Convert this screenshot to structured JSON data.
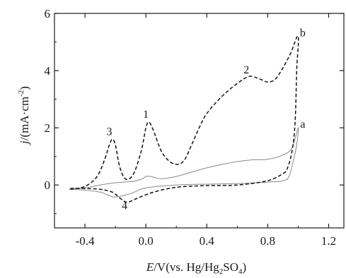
{
  "chart_data": {
    "type": "line",
    "xlim": [
      -0.6,
      1.3
    ],
    "ylim": [
      -1.5,
      6
    ],
    "x_ticks": [
      "-0.4",
      "0.0",
      "0.4",
      "0.8",
      "1.2"
    ],
    "x_tick_values": [
      -0.4,
      0.0,
      0.4,
      0.8,
      1.2
    ],
    "y_ticks": [
      "0",
      "2",
      "4",
      "6"
    ],
    "y_tick_values": [
      0,
      2,
      4,
      6
    ],
    "xlabel": {
      "italic": "E",
      "rest": "/V(vs. Hg/Hg",
      "sub1": "2",
      "mid": "SO",
      "sub2": "4",
      "end": ")"
    },
    "ylabel": {
      "italic": "j",
      "rest": "/(mA·cm",
      "sup": "-2",
      "end": ")"
    },
    "grid": false,
    "series": [
      {
        "name": "a",
        "style": "solid",
        "color": "#888888",
        "points": [
          [
            -0.5,
            -0.15
          ],
          [
            -0.4,
            -0.1
          ],
          [
            -0.3,
            0.0
          ],
          [
            -0.2,
            0.08
          ],
          [
            -0.1,
            0.12
          ],
          [
            -0.03,
            0.2
          ],
          [
            0.0,
            0.3
          ],
          [
            0.03,
            0.3
          ],
          [
            0.1,
            0.22
          ],
          [
            0.2,
            0.3
          ],
          [
            0.3,
            0.45
          ],
          [
            0.4,
            0.6
          ],
          [
            0.5,
            0.72
          ],
          [
            0.6,
            0.82
          ],
          [
            0.7,
            0.88
          ],
          [
            0.8,
            0.9
          ],
          [
            0.9,
            1.05
          ],
          [
            0.96,
            1.3
          ],
          [
            1.0,
            2.0
          ],
          [
            0.99,
            1.4
          ],
          [
            0.97,
            0.9
          ],
          [
            0.94,
            0.3
          ],
          [
            0.9,
            0.15
          ],
          [
            0.8,
            0.1
          ],
          [
            0.6,
            0.05
          ],
          [
            0.4,
            0.03
          ],
          [
            0.2,
            0.0
          ],
          [
            0.0,
            -0.1
          ],
          [
            -0.1,
            -0.3
          ],
          [
            -0.2,
            -0.42
          ],
          [
            -0.25,
            -0.35
          ],
          [
            -0.3,
            -0.25
          ],
          [
            -0.4,
            -0.18
          ],
          [
            -0.5,
            -0.15
          ]
        ]
      },
      {
        "name": "b",
        "style": "dashed",
        "color": "#111111",
        "points": [
          [
            -0.5,
            -0.15
          ],
          [
            -0.4,
            -0.05
          ],
          [
            -0.32,
            0.3
          ],
          [
            -0.27,
            0.9
          ],
          [
            -0.24,
            1.4
          ],
          [
            -0.22,
            1.6
          ],
          [
            -0.2,
            1.4
          ],
          [
            -0.17,
            0.6
          ],
          [
            -0.13,
            0.2
          ],
          [
            -0.08,
            0.4
          ],
          [
            -0.03,
            1.2
          ],
          [
            0.0,
            2.0
          ],
          [
            0.02,
            2.2
          ],
          [
            0.05,
            1.9
          ],
          [
            0.1,
            1.2
          ],
          [
            0.15,
            0.85
          ],
          [
            0.2,
            0.72
          ],
          [
            0.25,
            0.85
          ],
          [
            0.3,
            1.4
          ],
          [
            0.35,
            2.0
          ],
          [
            0.4,
            2.5
          ],
          [
            0.5,
            3.1
          ],
          [
            0.6,
            3.55
          ],
          [
            0.68,
            3.8
          ],
          [
            0.75,
            3.7
          ],
          [
            0.8,
            3.6
          ],
          [
            0.85,
            3.7
          ],
          [
            0.9,
            4.1
          ],
          [
            0.95,
            4.6
          ],
          [
            1.0,
            5.2
          ],
          [
            0.99,
            4.0
          ],
          [
            0.98,
            2.2
          ],
          [
            0.96,
            1.2
          ],
          [
            0.93,
            0.6
          ],
          [
            0.9,
            0.4
          ],
          [
            0.8,
            0.15
          ],
          [
            0.6,
            0.0
          ],
          [
            0.4,
            -0.02
          ],
          [
            0.2,
            -0.08
          ],
          [
            0.05,
            -0.25
          ],
          [
            -0.05,
            -0.45
          ],
          [
            -0.12,
            -0.6
          ],
          [
            -0.16,
            -0.5
          ],
          [
            -0.22,
            -0.25
          ],
          [
            -0.3,
            -0.15
          ],
          [
            -0.4,
            -0.12
          ],
          [
            -0.5,
            -0.12
          ]
        ]
      }
    ],
    "annotations": [
      {
        "text": "a",
        "x": 1.03,
        "y": 2.0
      },
      {
        "text": "b",
        "x": 1.03,
        "y": 5.2
      },
      {
        "text": "1",
        "x": 0.0,
        "y": 2.35
      },
      {
        "text": "2",
        "x": 0.66,
        "y": 3.9
      },
      {
        "text": "3",
        "x": -0.24,
        "y": 1.75
      },
      {
        "text": "4",
        "x": -0.14,
        "y": -0.85
      }
    ]
  }
}
